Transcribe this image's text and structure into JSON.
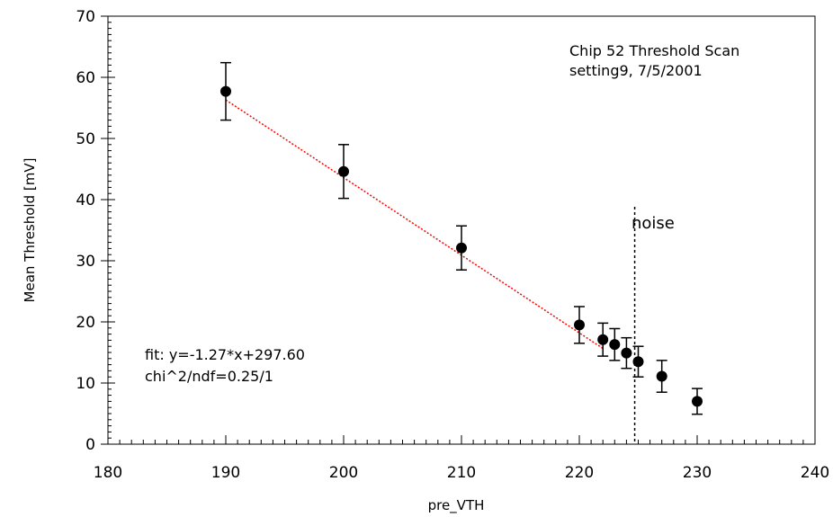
{
  "chart_data": {
    "type": "scatter",
    "xlabel": "pre_VTH",
    "ylabel": "Mean Threshold [mV]",
    "xlim": [
      180,
      240
    ],
    "ylim": [
      0,
      70
    ],
    "x_ticks": [
      180,
      190,
      200,
      210,
      220,
      230,
      240
    ],
    "y_ticks": [
      0,
      10,
      20,
      30,
      40,
      50,
      60,
      70
    ],
    "grid": false,
    "series": [
      {
        "points": [
          {
            "x": 190,
            "y": 57.7,
            "err": 4.7
          },
          {
            "x": 200,
            "y": 44.6,
            "err": 4.4
          },
          {
            "x": 210,
            "y": 32.1,
            "err": 3.6
          },
          {
            "x": 220,
            "y": 19.5,
            "err": 3.0
          },
          {
            "x": 222,
            "y": 17.1,
            "err": 2.7
          },
          {
            "x": 223,
            "y": 16.3,
            "err": 2.6
          },
          {
            "x": 224,
            "y": 14.9,
            "err": 2.5
          },
          {
            "x": 225,
            "y": 13.5,
            "err": 2.5
          },
          {
            "x": 227,
            "y": 11.1,
            "err": 2.6
          },
          {
            "x": 230,
            "y": 7.0,
            "err": 2.1
          }
        ],
        "color": "#000000"
      }
    ],
    "fit_line": {
      "slope": -1.27,
      "intercept": 297.6,
      "x_start": 190,
      "x_end": 222,
      "color": "#ff0000"
    },
    "noise_line": {
      "x": 224.7
    },
    "annotations": {
      "title_line1": "Chip 52 Threshold Scan",
      "title_line2": "setting9, 7/5/2001",
      "noise_label": "noise",
      "fit_line1": "fit: y=-1.27*x+297.60",
      "fit_line2": "chi^2/ndf=0.25/1"
    }
  }
}
